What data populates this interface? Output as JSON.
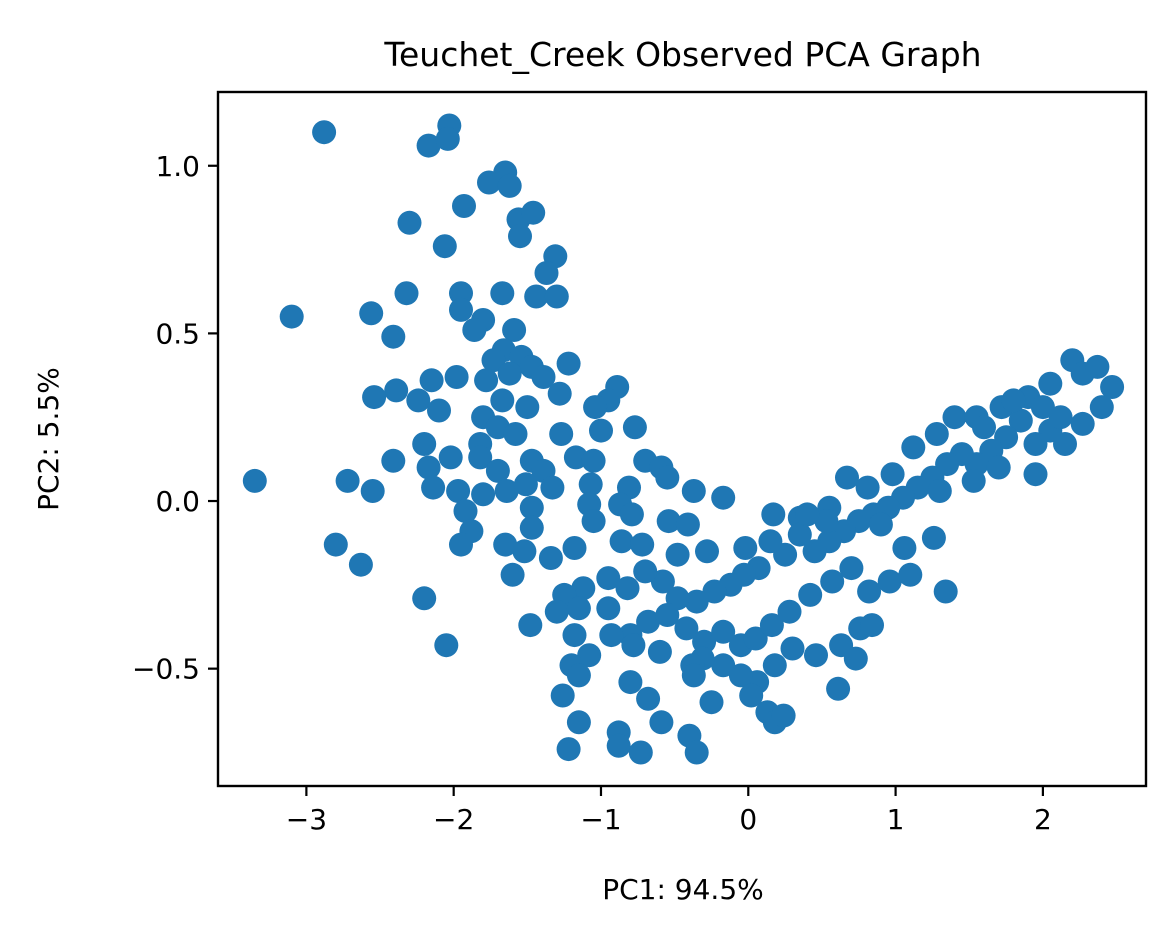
{
  "chart_data": {
    "type": "scatter",
    "title": "Teuchet_Creek Observed PCA Graph",
    "xlabel": "PC1: 94.5%",
    "ylabel": "PC2: 5.5%",
    "xlim": [
      -3.6,
      2.7
    ],
    "ylim": [
      -0.85,
      1.22
    ],
    "xticks": [
      -3,
      -2,
      -1,
      0,
      1,
      2
    ],
    "xtick_labels": [
      "−3",
      "−2",
      "−1",
      "0",
      "1",
      "2"
    ],
    "yticks": [
      -0.5,
      0.0,
      0.5,
      1.0
    ],
    "ytick_labels": [
      "−0.5",
      "0.0",
      "0.5",
      "1.0"
    ],
    "grid": false,
    "marker_color": "#1f77b4",
    "points": [
      [
        -2.88,
        1.1
      ],
      [
        -2.03,
        1.12
      ],
      [
        -2.17,
        1.06
      ],
      [
        -2.04,
        1.08
      ],
      [
        -1.65,
        0.98
      ],
      [
        -1.76,
        0.95
      ],
      [
        -1.62,
        0.94
      ],
      [
        -1.93,
        0.88
      ],
      [
        -1.56,
        0.84
      ],
      [
        -1.46,
        0.86
      ],
      [
        -2.3,
        0.83
      ],
      [
        -1.55,
        0.79
      ],
      [
        -2.06,
        0.76
      ],
      [
        -1.31,
        0.73
      ],
      [
        -1.37,
        0.68
      ],
      [
        -1.44,
        0.61
      ],
      [
        -1.3,
        0.61
      ],
      [
        -2.32,
        0.62
      ],
      [
        -1.95,
        0.62
      ],
      [
        -1.67,
        0.62
      ],
      [
        -3.1,
        0.55
      ],
      [
        -2.56,
        0.56
      ],
      [
        -1.95,
        0.57
      ],
      [
        -1.8,
        0.54
      ],
      [
        -1.86,
        0.51
      ],
      [
        -1.59,
        0.51
      ],
      [
        -2.41,
        0.49
      ],
      [
        -1.66,
        0.45
      ],
      [
        -1.73,
        0.42
      ],
      [
        -1.54,
        0.43
      ],
      [
        -1.22,
        0.41
      ],
      [
        -1.47,
        0.4
      ],
      [
        -1.39,
        0.37
      ],
      [
        -1.62,
        0.38
      ],
      [
        -1.78,
        0.36
      ],
      [
        -1.98,
        0.37
      ],
      [
        -2.15,
        0.36
      ],
      [
        -2.39,
        0.33
      ],
      [
        -2.54,
        0.31
      ],
      [
        -2.24,
        0.3
      ],
      [
        -1.28,
        0.32
      ],
      [
        -0.89,
        0.34
      ],
      [
        -0.95,
        0.3
      ],
      [
        -1.04,
        0.28
      ],
      [
        -1.5,
        0.28
      ],
      [
        -1.67,
        0.3
      ],
      [
        -1.8,
        0.25
      ],
      [
        -2.1,
        0.27
      ],
      [
        -1.7,
        0.22
      ],
      [
        -1.58,
        0.2
      ],
      [
        -0.77,
        0.22
      ],
      [
        -1.0,
        0.21
      ],
      [
        -1.27,
        0.2
      ],
      [
        -1.82,
        0.17
      ],
      [
        -2.2,
        0.17
      ],
      [
        -1.82,
        0.13
      ],
      [
        -2.02,
        0.13
      ],
      [
        -2.41,
        0.12
      ],
      [
        -1.47,
        0.12
      ],
      [
        -1.17,
        0.13
      ],
      [
        -1.05,
        0.12
      ],
      [
        -0.7,
        0.12
      ],
      [
        -0.59,
        0.1
      ],
      [
        -1.39,
        0.09
      ],
      [
        -1.7,
        0.09
      ],
      [
        -2.17,
        0.1
      ],
      [
        -2.14,
        0.04
      ],
      [
        -3.35,
        0.06
      ],
      [
        -2.72,
        0.06
      ],
      [
        -2.55,
        0.03
      ],
      [
        -1.97,
        0.03
      ],
      [
        -1.8,
        0.02
      ],
      [
        -1.64,
        0.03
      ],
      [
        -1.51,
        0.05
      ],
      [
        -1.33,
        0.04
      ],
      [
        -1.07,
        0.05
      ],
      [
        -0.81,
        0.04
      ],
      [
        -0.37,
        0.03
      ],
      [
        -0.55,
        0.07
      ],
      [
        -0.17,
        0.01
      ],
      [
        -0.87,
        -0.01
      ],
      [
        -1.08,
        -0.01
      ],
      [
        -1.47,
        -0.02
      ],
      [
        -1.92,
        -0.03
      ],
      [
        -0.79,
        -0.04
      ],
      [
        -0.54,
        -0.06
      ],
      [
        -0.41,
        -0.07
      ],
      [
        -1.05,
        -0.06
      ],
      [
        -1.47,
        -0.08
      ],
      [
        -1.88,
        -0.09
      ],
      [
        -2.8,
        -0.13
      ],
      [
        -1.95,
        -0.13
      ],
      [
        -1.65,
        -0.13
      ],
      [
        -1.52,
        -0.15
      ],
      [
        -1.34,
        -0.17
      ],
      [
        -1.18,
        -0.14
      ],
      [
        -0.86,
        -0.12
      ],
      [
        -0.72,
        -0.13
      ],
      [
        -0.48,
        -0.16
      ],
      [
        -0.28,
        -0.15
      ],
      [
        -0.02,
        -0.14
      ],
      [
        0.17,
        -0.04
      ],
      [
        0.35,
        -0.05
      ],
      [
        0.55,
        -0.02
      ],
      [
        0.67,
        0.07
      ],
      [
        0.81,
        0.04
      ],
      [
        0.98,
        0.08
      ],
      [
        1.12,
        0.16
      ],
      [
        1.28,
        0.2
      ],
      [
        1.4,
        0.25
      ],
      [
        1.55,
        0.25
      ],
      [
        1.72,
        0.28
      ],
      [
        1.9,
        0.31
      ],
      [
        2.05,
        0.35
      ],
      [
        2.2,
        0.42
      ],
      [
        2.27,
        0.38
      ],
      [
        2.37,
        0.4
      ],
      [
        2.47,
        0.34
      ],
      [
        2.4,
        0.28
      ],
      [
        2.27,
        0.23
      ],
      [
        2.15,
        0.17
      ],
      [
        2.05,
        0.21
      ],
      [
        1.95,
        0.17
      ],
      [
        1.85,
        0.24
      ],
      [
        1.75,
        0.19
      ],
      [
        1.65,
        0.15
      ],
      [
        1.55,
        0.11
      ],
      [
        1.45,
        0.14
      ],
      [
        1.35,
        0.11
      ],
      [
        1.25,
        0.07
      ],
      [
        1.15,
        0.04
      ],
      [
        1.05,
        0.01
      ],
      [
        0.95,
        -0.02
      ],
      [
        0.85,
        -0.04
      ],
      [
        0.75,
        -0.06
      ],
      [
        0.65,
        -0.09
      ],
      [
        0.55,
        -0.12
      ],
      [
        0.45,
        -0.15
      ],
      [
        0.35,
        -0.1
      ],
      [
        0.25,
        -0.16
      ],
      [
        0.15,
        -0.12
      ],
      [
        0.07,
        -0.2
      ],
      [
        -0.03,
        -0.22
      ],
      [
        -0.12,
        -0.25
      ],
      [
        -0.23,
        -0.27
      ],
      [
        -0.35,
        -0.3
      ],
      [
        -0.48,
        -0.29
      ],
      [
        -0.58,
        -0.24
      ],
      [
        -0.7,
        -0.21
      ],
      [
        -0.82,
        -0.26
      ],
      [
        -0.95,
        -0.23
      ],
      [
        -1.12,
        -0.26
      ],
      [
        -1.25,
        -0.28
      ],
      [
        -1.3,
        -0.33
      ],
      [
        -1.48,
        -0.37
      ],
      [
        -1.15,
        -0.32
      ],
      [
        -0.95,
        -0.32
      ],
      [
        -0.8,
        -0.4
      ],
      [
        -0.68,
        -0.36
      ],
      [
        -0.55,
        -0.34
      ],
      [
        -0.42,
        -0.38
      ],
      [
        -0.3,
        -0.42
      ],
      [
        -0.17,
        -0.39
      ],
      [
        -0.05,
        -0.43
      ],
      [
        0.05,
        -0.41
      ],
      [
        0.16,
        -0.37
      ],
      [
        0.28,
        -0.33
      ],
      [
        0.42,
        -0.28
      ],
      [
        0.57,
        -0.24
      ],
      [
        0.7,
        -0.2
      ],
      [
        0.82,
        -0.27
      ],
      [
        0.96,
        -0.24
      ],
      [
        1.1,
        -0.22
      ],
      [
        1.34,
        -0.27
      ],
      [
        0.76,
        -0.38
      ],
      [
        0.63,
        -0.43
      ],
      [
        0.46,
        -0.46
      ],
      [
        0.3,
        -0.44
      ],
      [
        0.18,
        -0.49
      ],
      [
        0.06,
        -0.54
      ],
      [
        -0.05,
        -0.52
      ],
      [
        -0.17,
        -0.49
      ],
      [
        -0.31,
        -0.47
      ],
      [
        -0.38,
        -0.49
      ],
      [
        -0.6,
        -0.45
      ],
      [
        -0.78,
        -0.43
      ],
      [
        -0.93,
        -0.4
      ],
      [
        -1.08,
        -0.46
      ],
      [
        -1.18,
        -0.4
      ],
      [
        -1.2,
        -0.49
      ],
      [
        -1.26,
        -0.58
      ],
      [
        -1.15,
        -0.52
      ],
      [
        -0.8,
        -0.54
      ],
      [
        -0.68,
        -0.59
      ],
      [
        -0.59,
        -0.66
      ],
      [
        -0.88,
        -0.69
      ],
      [
        -1.15,
        -0.66
      ],
      [
        -0.4,
        -0.7
      ],
      [
        -0.88,
        -0.73
      ],
      [
        -0.73,
        -0.75
      ],
      [
        -0.35,
        -0.75
      ],
      [
        -1.22,
        -0.74
      ],
      [
        0.02,
        -0.58
      ],
      [
        0.13,
        -0.63
      ],
      [
        0.18,
        -0.66
      ],
      [
        0.24,
        -0.64
      ],
      [
        0.61,
        -0.56
      ],
      [
        0.73,
        -0.47
      ],
      [
        0.84,
        -0.37
      ],
      [
        -2.2,
        -0.29
      ],
      [
        -2.63,
        -0.19
      ],
      [
        -2.05,
        -0.43
      ],
      [
        -1.6,
        -0.22
      ],
      [
        -0.37,
        -0.52
      ],
      [
        -0.25,
        -0.6
      ],
      [
        1.6,
        0.22
      ],
      [
        1.8,
        0.3
      ],
      [
        2.0,
        0.28
      ],
      [
        2.12,
        0.25
      ],
      [
        1.7,
        0.1
      ],
      [
        1.95,
        0.08
      ],
      [
        1.53,
        0.06
      ],
      [
        1.3,
        0.03
      ],
      [
        0.9,
        -0.07
      ],
      [
        1.06,
        -0.14
      ],
      [
        1.26,
        -0.11
      ],
      [
        0.53,
        -0.06
      ],
      [
        0.4,
        -0.04
      ]
    ]
  }
}
